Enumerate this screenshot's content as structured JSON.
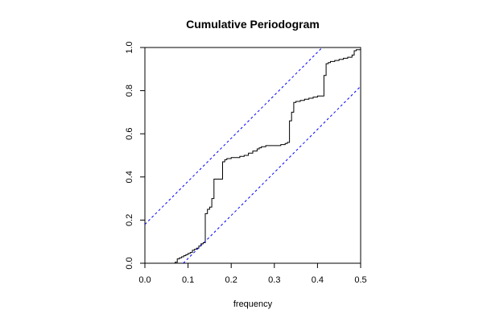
{
  "chart_data": {
    "type": "line",
    "title": "Cumulative Periodogram",
    "xlabel": "frequency",
    "ylabel": "",
    "xlim": [
      0.0,
      0.5
    ],
    "ylim": [
      0.0,
      1.0
    ],
    "x_ticks": [
      "0.0",
      "0.1",
      "0.2",
      "0.3",
      "0.4",
      "0.5"
    ],
    "y_ticks": [
      "0.0",
      "0.2",
      "0.4",
      "0.6",
      "0.8",
      "1.0"
    ],
    "grid": false,
    "legend": "none",
    "series": [
      {
        "style": "step",
        "color": "#000000",
        "x": [
          0.0,
          0.06,
          0.07,
          0.075,
          0.08,
          0.085,
          0.09,
          0.095,
          0.1,
          0.105,
          0.11,
          0.115,
          0.12,
          0.125,
          0.13,
          0.135,
          0.14,
          0.145,
          0.15,
          0.155,
          0.16,
          0.165,
          0.17,
          0.175,
          0.18,
          0.185,
          0.19,
          0.195,
          0.2,
          0.21,
          0.22,
          0.23,
          0.24,
          0.25,
          0.26,
          0.265,
          0.27,
          0.28,
          0.29,
          0.3,
          0.31,
          0.315,
          0.32,
          0.325,
          0.33,
          0.335,
          0.34,
          0.345,
          0.35,
          0.36,
          0.37,
          0.38,
          0.39,
          0.4,
          0.41,
          0.415,
          0.42,
          0.425,
          0.43,
          0.44,
          0.45,
          0.46,
          0.47,
          0.48,
          0.485,
          0.49,
          0.5
        ],
        "y": [
          0.0,
          0.0,
          0.005,
          0.02,
          0.025,
          0.03,
          0.035,
          0.04,
          0.045,
          0.05,
          0.06,
          0.065,
          0.07,
          0.08,
          0.09,
          0.095,
          0.23,
          0.25,
          0.26,
          0.3,
          0.39,
          0.39,
          0.39,
          0.39,
          0.47,
          0.48,
          0.485,
          0.485,
          0.49,
          0.49,
          0.495,
          0.5,
          0.51,
          0.52,
          0.53,
          0.535,
          0.54,
          0.545,
          0.545,
          0.545,
          0.545,
          0.55,
          0.55,
          0.555,
          0.56,
          0.66,
          0.7,
          0.745,
          0.75,
          0.755,
          0.76,
          0.765,
          0.77,
          0.775,
          0.775,
          0.87,
          0.925,
          0.93,
          0.935,
          0.94,
          0.945,
          0.95,
          0.955,
          0.965,
          0.985,
          0.99,
          1.0
        ]
      },
      {
        "style": "dashed",
        "color": "#0000ff",
        "x": [
          0.0,
          0.411
        ],
        "y": [
          0.18,
          1.0
        ]
      },
      {
        "style": "dashed",
        "color": "#0000ff",
        "x": [
          0.089,
          0.5
        ],
        "y": [
          0.0,
          0.82
        ]
      }
    ]
  }
}
